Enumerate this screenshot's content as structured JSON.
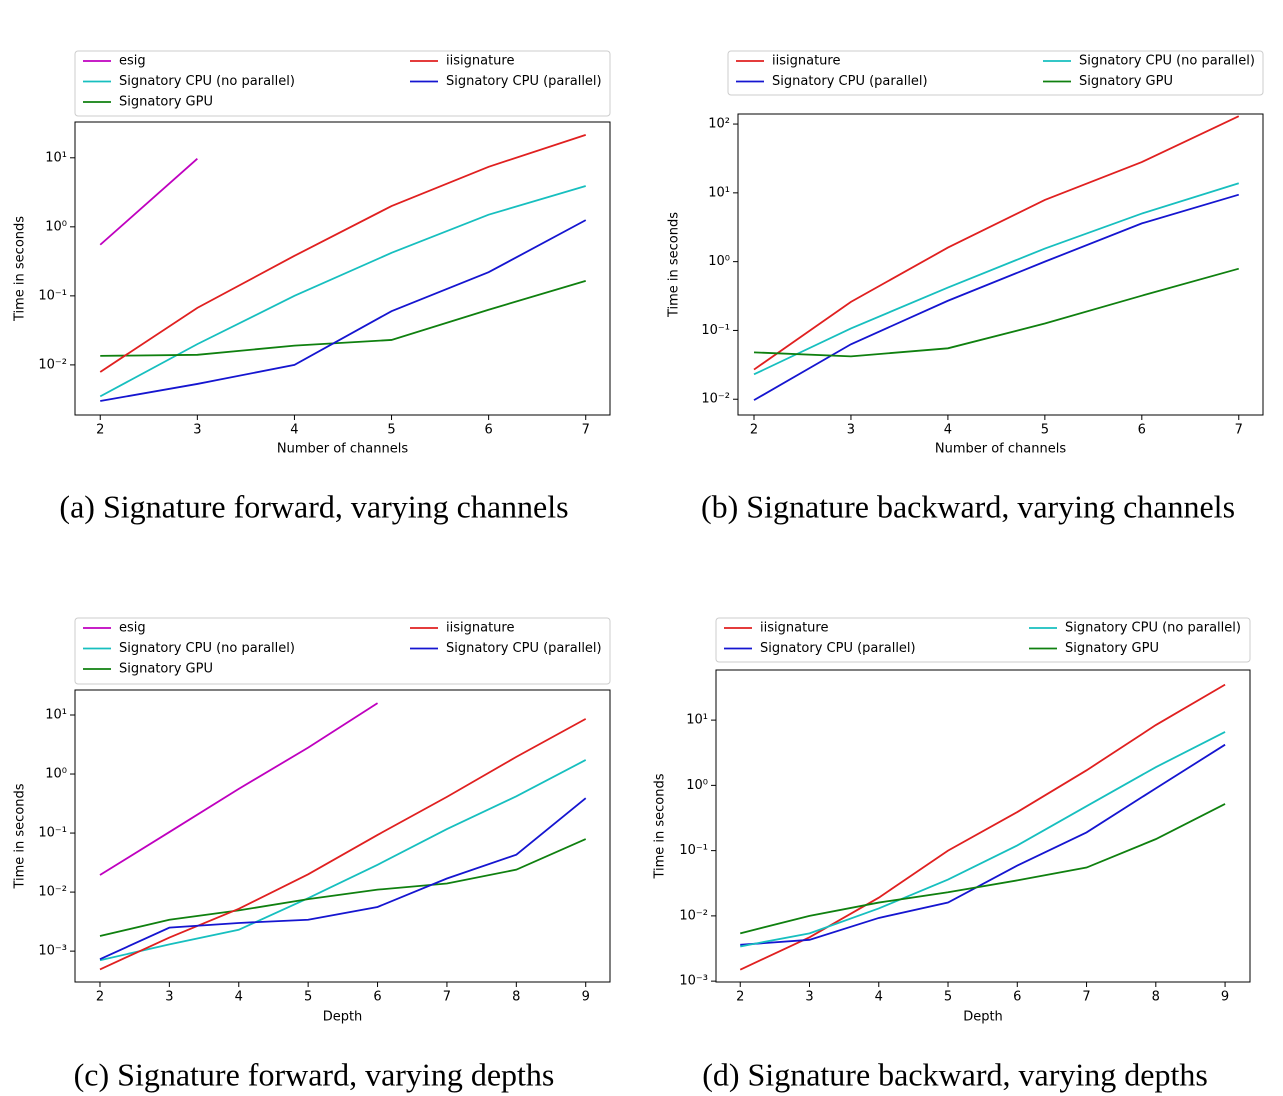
{
  "chart_data": [
    {
      "type": "line",
      "caption": "(a) Signature forward, varying channels",
      "x_label": "Number of channels",
      "y_label": "Time in seconds",
      "log_y": true,
      "grid": false,
      "legend_columns": 2,
      "x": [
        2,
        3,
        4,
        5,
        6,
        7
      ],
      "xlim": [
        1.74,
        7.25
      ],
      "xticks": [
        2,
        3,
        4,
        5,
        6,
        7
      ],
      "ylim": [
        0.00188,
        33
      ],
      "yticks": [
        {
          "value": 0.01,
          "label": "10⁻²"
        },
        {
          "value": 0.1,
          "label": "10⁻¹"
        },
        {
          "value": 1,
          "label": "10⁰"
        },
        {
          "value": 10,
          "label": "10¹"
        }
      ],
      "series": [
        {
          "name": "esig",
          "color": "#bf00bf",
          "values": [
            0.55,
            9.7,
            null,
            null,
            null,
            null
          ]
        },
        {
          "name": "Signatory CPU (no parallel)",
          "color": "#17bfbf",
          "values": [
            0.0035,
            0.02,
            0.1,
            0.42,
            1.5,
            3.9
          ]
        },
        {
          "name": "Signatory GPU",
          "color": "#0f800f",
          "values": [
            0.0135,
            0.014,
            0.019,
            0.023,
            0.063,
            0.165
          ]
        },
        {
          "name": "iisignature",
          "color": "#e02020",
          "values": [
            0.0079,
            0.067,
            0.38,
            2.0,
            7.4,
            21.5
          ]
        },
        {
          "name": "Signatory CPU (parallel)",
          "color": "#1515d0",
          "values": [
            0.003,
            0.0053,
            0.01,
            0.06,
            0.22,
            1.25
          ]
        }
      ]
    },
    {
      "type": "line",
      "caption": "(b) Signature backward, varying channels",
      "x_label": "Number of channels",
      "y_label": "Time in seconds",
      "log_y": true,
      "grid": false,
      "legend_columns": 2,
      "x": [
        2,
        3,
        4,
        5,
        6,
        7
      ],
      "xlim": [
        1.835,
        7.25
      ],
      "xticks": [
        2,
        3,
        4,
        5,
        6,
        7
      ],
      "ylim": [
        0.0059,
        140
      ],
      "yticks": [
        {
          "value": 0.01,
          "label": "10⁻²"
        },
        {
          "value": 0.1,
          "label": "10⁻¹"
        },
        {
          "value": 1,
          "label": "10⁰"
        },
        {
          "value": 10,
          "label": "10¹"
        },
        {
          "value": 100,
          "label": "10²"
        }
      ],
      "series": [
        {
          "name": "iisignature",
          "color": "#e02020",
          "values": [
            0.027,
            0.26,
            1.6,
            7.9,
            28,
            130
          ]
        },
        {
          "name": "Signatory CPU (parallel)",
          "color": "#1515d0",
          "values": [
            0.0097,
            0.063,
            0.27,
            1.0,
            3.6,
            9.4
          ]
        },
        {
          "name": "Signatory CPU (no parallel)",
          "color": "#17bfbf",
          "values": [
            0.023,
            0.107,
            0.42,
            1.55,
            5,
            13.8
          ]
        },
        {
          "name": "Signatory GPU",
          "color": "#0f800f",
          "values": [
            0.048,
            0.042,
            0.055,
            0.126,
            0.32,
            0.79
          ]
        }
      ]
    },
    {
      "type": "line",
      "caption": "(c) Signature forward, varying depths",
      "x_label": "Depth",
      "y_label": "Time in seconds",
      "log_y": true,
      "grid": false,
      "legend_columns": 2,
      "x": [
        2,
        3,
        4,
        5,
        6,
        7,
        8,
        9
      ],
      "xlim": [
        1.64,
        9.35
      ],
      "xticks": [
        2,
        3,
        4,
        5,
        6,
        7,
        8,
        9
      ],
      "ylim": [
        0.0003,
        26.5
      ],
      "yticks": [
        {
          "value": 0.001,
          "label": "10⁻³"
        },
        {
          "value": 0.01,
          "label": "10⁻²"
        },
        {
          "value": 0.1,
          "label": "10⁻¹"
        },
        {
          "value": 1,
          "label": "10⁰"
        },
        {
          "value": 10,
          "label": "10¹"
        }
      ],
      "series": [
        {
          "name": "esig",
          "color": "#bf00bf",
          "values": [
            0.0195,
            0.104,
            0.56,
            2.8,
            15.9,
            null,
            null,
            null
          ]
        },
        {
          "name": "Signatory CPU (no parallel)",
          "color": "#17bfbf",
          "values": [
            0.0007,
            0.0013,
            0.0023,
            0.0079,
            0.029,
            0.117,
            0.42,
            1.73
          ]
        },
        {
          "name": "Signatory GPU",
          "color": "#0f800f",
          "values": [
            0.0018,
            0.0034,
            0.0049,
            0.0076,
            0.011,
            0.014,
            0.024,
            0.079
          ]
        },
        {
          "name": "iisignature",
          "color": "#e02020",
          "values": [
            0.00049,
            0.0017,
            0.0052,
            0.02,
            0.093,
            0.41,
            1.95,
            8.6
          ]
        },
        {
          "name": "Signatory CPU (parallel)",
          "color": "#1515d0",
          "values": [
            0.00073,
            0.0025,
            0.003,
            0.0034,
            0.0056,
            0.017,
            0.043,
            0.39
          ]
        }
      ]
    },
    {
      "type": "line",
      "caption": "(d) Signature backward, varying depths",
      "x_label": "Depth",
      "y_label": "Time in seconds",
      "log_y": true,
      "grid": false,
      "legend_columns": 2,
      "x": [
        2,
        3,
        4,
        5,
        6,
        7,
        8,
        9
      ],
      "xlim": [
        1.65,
        9.36
      ],
      "xticks": [
        2,
        3,
        4,
        5,
        6,
        7,
        8,
        9
      ],
      "ylim": [
        0.00097,
        58.6
      ],
      "yticks": [
        {
          "value": 0.001,
          "label": "10⁻³"
        },
        {
          "value": 0.01,
          "label": "10⁻²"
        },
        {
          "value": 0.1,
          "label": "10⁻¹"
        },
        {
          "value": 1,
          "label": "10⁰"
        },
        {
          "value": 10,
          "label": "10¹"
        }
      ],
      "series": [
        {
          "name": "iisignature",
          "color": "#e02020",
          "values": [
            0.0015,
            0.0047,
            0.019,
            0.1,
            0.39,
            1.7,
            8.4,
            35
          ]
        },
        {
          "name": "Signatory CPU (parallel)",
          "color": "#1515d0",
          "values": [
            0.0036,
            0.0043,
            0.0093,
            0.016,
            0.059,
            0.19,
            0.9,
            4.2
          ]
        },
        {
          "name": "Signatory CPU (no parallel)",
          "color": "#17bfbf",
          "values": [
            0.0034,
            0.0054,
            0.013,
            0.036,
            0.12,
            0.48,
            1.9,
            6.6
          ]
        },
        {
          "name": "Signatory GPU",
          "color": "#0f800f",
          "values": [
            0.0054,
            0.01,
            0.016,
            0.023,
            0.035,
            0.055,
            0.15,
            0.52
          ]
        }
      ]
    }
  ]
}
